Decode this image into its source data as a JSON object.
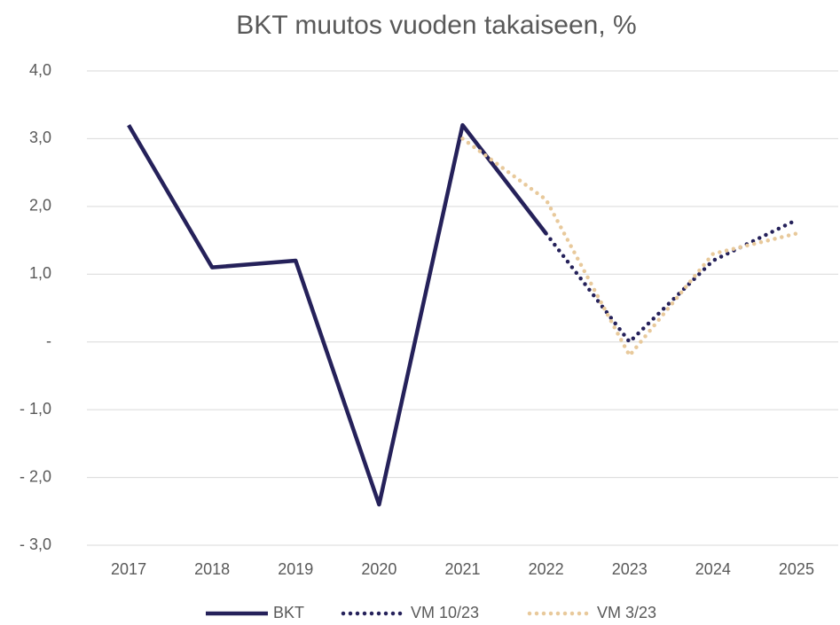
{
  "chart_data": {
    "type": "line",
    "title": "BKT muutos vuoden takaiseen, %",
    "categories": [
      "2017",
      "2018",
      "2019",
      "2020",
      "2021",
      "2022",
      "2023",
      "2024",
      "2025"
    ],
    "series": [
      {
        "name": "BKT",
        "color": "#25215a",
        "style": "solid",
        "values": [
          3.2,
          1.1,
          1.2,
          -2.4,
          3.2,
          1.6,
          null,
          null,
          null
        ]
      },
      {
        "name": "VM 10/23",
        "color": "#25215a",
        "style": "dotted",
        "values": [
          null,
          null,
          null,
          null,
          null,
          1.6,
          0.0,
          1.2,
          1.8
        ]
      },
      {
        "name": "VM 3/23",
        "color": "#e8c99b",
        "style": "dotted",
        "values": [
          null,
          null,
          null,
          null,
          3.0,
          2.1,
          -0.2,
          1.3,
          1.6
        ]
      }
    ],
    "ylim": [
      -3,
      4
    ],
    "yticks": [
      {
        "value": -3,
        "label": "- 3,0"
      },
      {
        "value": -2,
        "label": "- 2,0"
      },
      {
        "value": -1,
        "label": "- 1,0"
      },
      {
        "value": 0,
        "label": "-"
      },
      {
        "value": 1,
        "label": "1,0"
      },
      {
        "value": 2,
        "label": "2,0"
      },
      {
        "value": 3,
        "label": "3,0"
      },
      {
        "value": 4,
        "label": "4,0"
      }
    ],
    "grid": true,
    "legend": "bottom"
  }
}
